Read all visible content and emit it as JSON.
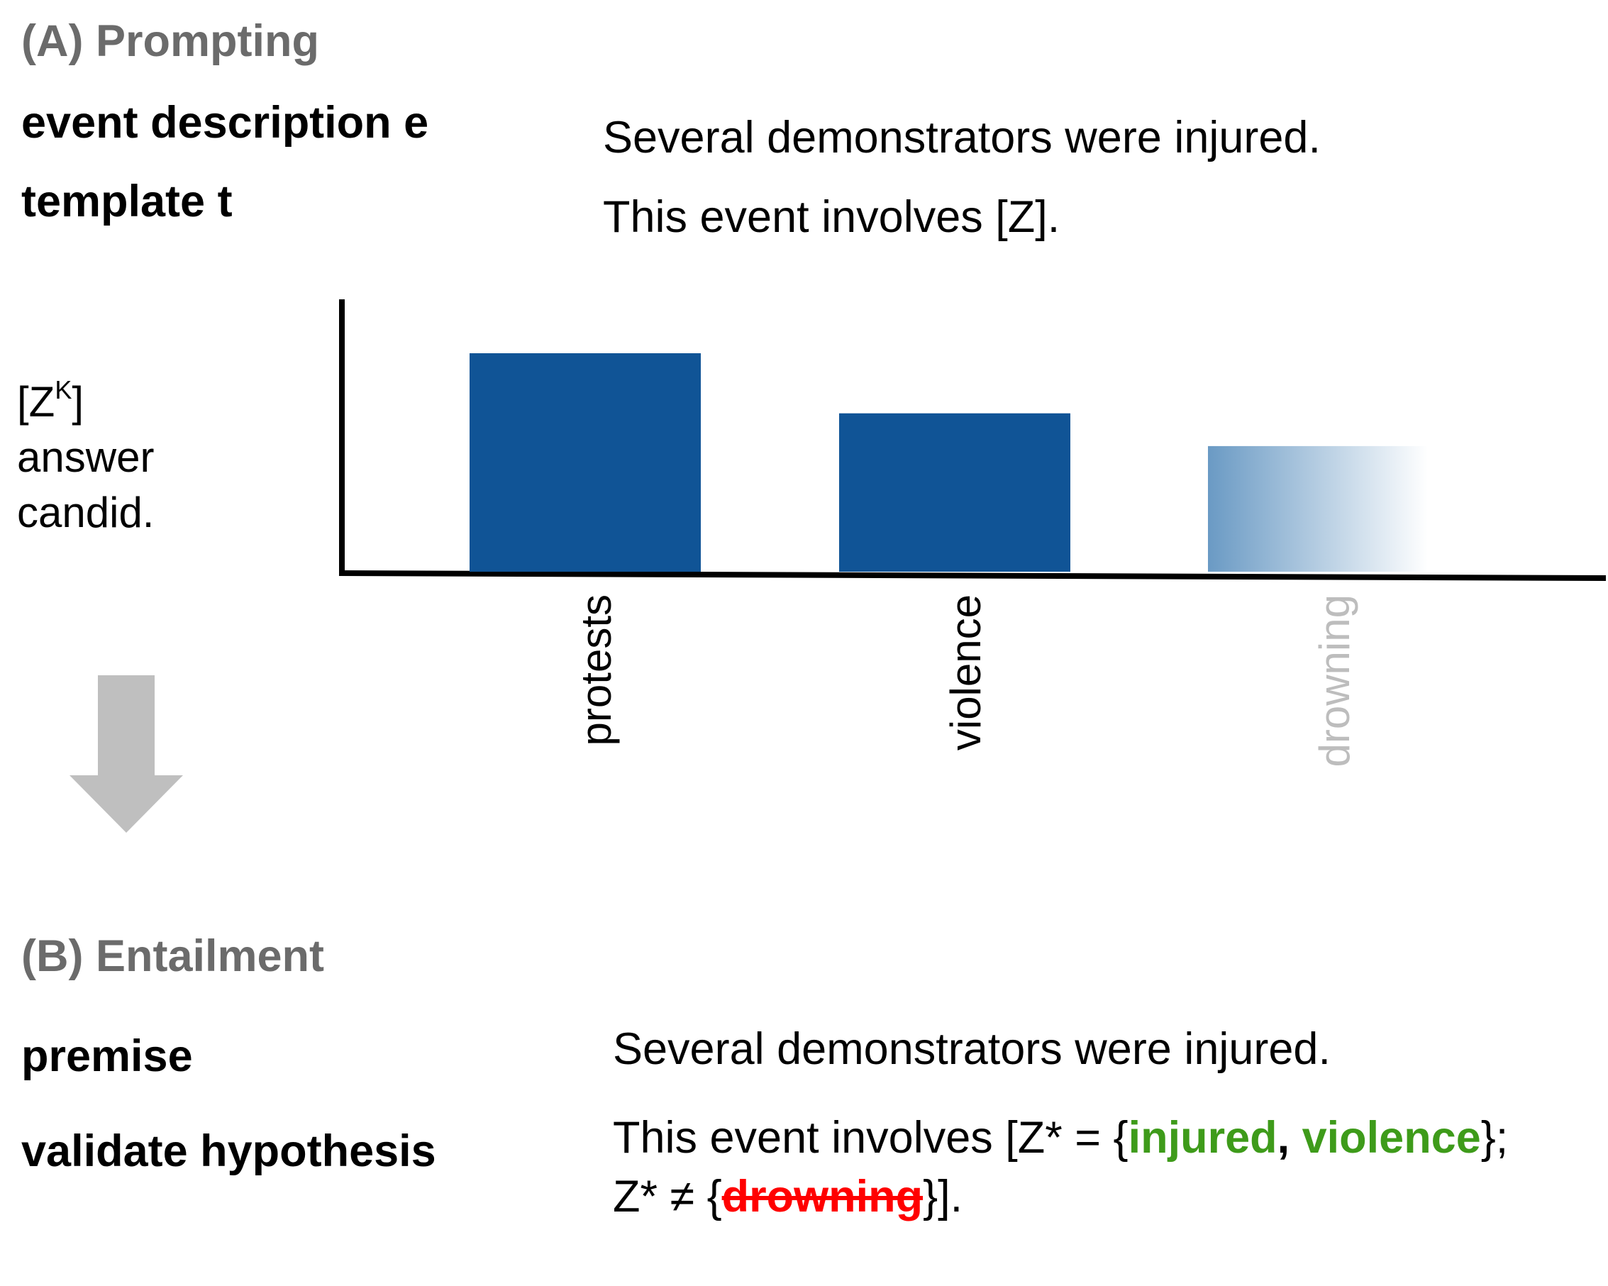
{
  "section_a": {
    "title": "(A) Prompting",
    "event_label": "event description e",
    "event_text": "Several demonstrators were injured.",
    "template_label": "template t",
    "template_text": "This event involves [Z].",
    "answer_label": {
      "line1_prefix": "[Z",
      "line1_sup": "K",
      "line1_suffix": "]",
      "line2": "answer",
      "line3": "candid."
    }
  },
  "chart_data": {
    "type": "bar",
    "categories": [
      "protests",
      "violence",
      "drowning"
    ],
    "values": [
      0.8,
      0.58,
      0.46
    ],
    "faded": [
      false,
      false,
      true
    ],
    "bar_color": "#105496",
    "faded_label_color": "#bdbdbd"
  },
  "arrow_color": "#bfbfbf",
  "section_b": {
    "title": "(B) Entailment",
    "premise_label": "premise",
    "premise_text": "Several demonstrators were injured.",
    "hypothesis_label": "validate hypothesis",
    "hyp_line1_prefix": "This event involves [Z* = {",
    "hyp_valid1": "injured",
    "hyp_sep": ", ",
    "hyp_valid2": "violence",
    "hyp_line1_suffix": "};",
    "hyp_line2_prefix": "Z* ≠ {",
    "hyp_invalid": "drowning",
    "hyp_line2_suffix": "}].",
    "valid_color": "#3e9b1a",
    "invalid_color": "#ff0000"
  }
}
